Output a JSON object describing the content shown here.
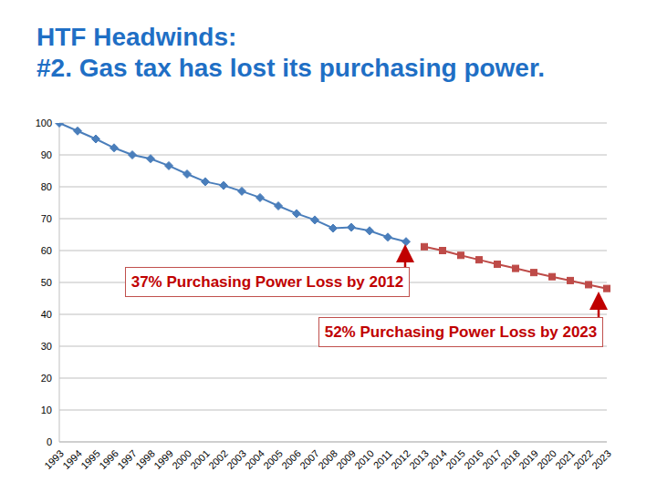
{
  "chart_data": {
    "type": "line",
    "title": "HTF Headwinds:\n#2. Gas tax has lost its purchasing power.",
    "categories": [
      "1993",
      "1994",
      "1995",
      "1996",
      "1997",
      "1998",
      "1999",
      "2000",
      "2001",
      "2002",
      "2003",
      "2004",
      "2005",
      "2006",
      "2007",
      "2008",
      "2009",
      "2010",
      "2011",
      "2012",
      "2013",
      "2014",
      "2015",
      "2016",
      "2017",
      "2018",
      "2019",
      "2020",
      "2021",
      "2022",
      "2023"
    ],
    "series": [
      {
        "color": "#4a7ebb",
        "marker": "diamond",
        "values": [
          100,
          97.5,
          95,
          92.2,
          90,
          88.8,
          86.6,
          84,
          81.6,
          80.4,
          78.6,
          76.6,
          74,
          71.6,
          69.6,
          67,
          67.3,
          66.2,
          64.2,
          62.8,
          null,
          null,
          null,
          null,
          null,
          null,
          null,
          null,
          null,
          null,
          null
        ]
      },
      {
        "color": "#be4b48",
        "marker": "square",
        "values": [
          null,
          null,
          null,
          null,
          null,
          null,
          null,
          null,
          null,
          null,
          null,
          null,
          null,
          null,
          null,
          null,
          null,
          null,
          null,
          null,
          61.2,
          60,
          58.5,
          57.1,
          55.7,
          54.4,
          53.1,
          51.8,
          50.6,
          49.3,
          48.1
        ]
      }
    ],
    "ylim": [
      0,
      100
    ],
    "yticks": [
      0,
      10,
      20,
      30,
      40,
      50,
      60,
      70,
      80,
      90,
      100
    ],
    "grid": true,
    "annotations": [
      "37% Purchasing Power Loss by 2012",
      "52% Purchasing Power Loss by 2023"
    ]
  }
}
